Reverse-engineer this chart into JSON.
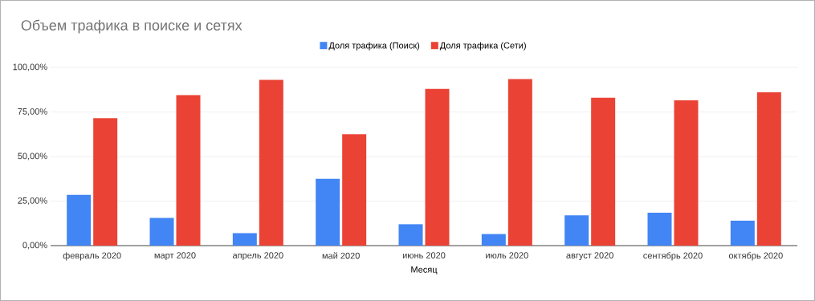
{
  "chart_data": {
    "type": "bar",
    "title": "Объем трафика в поиске и сетях",
    "xlabel": "Месяц",
    "categories": [
      "февраль 2020",
      "март 2020",
      "апрель 2020",
      "май 2020",
      "июнь 2020",
      "июль 2020",
      "август 2020",
      "сентябрь 2020",
      "октябрь 2020"
    ],
    "series": [
      {
        "name": "Доля трафика (Поиск)",
        "color": "#4285f4",
        "values": [
          28.5,
          15.5,
          7,
          37.5,
          12,
          6.5,
          17,
          18.5,
          14
        ]
      },
      {
        "name": "Доля трафика (Сети)",
        "color": "#ea4335",
        "values": [
          71.5,
          84.5,
          93,
          62.5,
          88,
          93.5,
          83,
          81.5,
          86
        ]
      }
    ],
    "ylim": [
      0,
      100
    ],
    "yticks": [
      {
        "value": 0,
        "label": "0,00%"
      },
      {
        "value": 25,
        "label": "25,00%"
      },
      {
        "value": 50,
        "label": "50,00%"
      },
      {
        "value": 75,
        "label": "75,00%"
      },
      {
        "value": 100,
        "label": "100,00%"
      }
    ],
    "grid": "y",
    "legend": "top"
  }
}
